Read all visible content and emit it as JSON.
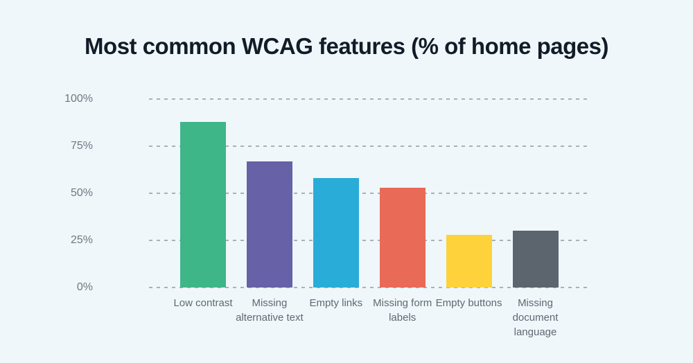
{
  "title": "Most common WCAG features (% of home pages)",
  "colors": {
    "background": "#eff7fb",
    "title": "#111c27",
    "gridline": "#a9b1b8",
    "ytick_label": "#6e7780",
    "xtick_label": "#5f6971"
  },
  "chart_data": {
    "type": "bar",
    "title": "Most common WCAG features (% of home pages)",
    "categories": [
      "Low contrast",
      "Missing alternative text",
      "Empty links",
      "Missing form labels",
      "Empty buttons",
      "Missing document language"
    ],
    "values": [
      88,
      67,
      58,
      53,
      28,
      30
    ],
    "bar_colors": [
      "#3eb687",
      "#6761a7",
      "#2aacd8",
      "#e96a57",
      "#fdd23a",
      "#5c646e"
    ],
    "xlabel": "",
    "ylabel": "",
    "ylim": [
      0,
      100
    ],
    "yticks": [
      0,
      25,
      50,
      75,
      100
    ],
    "ytick_labels": [
      "0%",
      "25%",
      "50%",
      "75%",
      "100%"
    ],
    "grid": "horizontal-dashed",
    "legend": "none"
  }
}
